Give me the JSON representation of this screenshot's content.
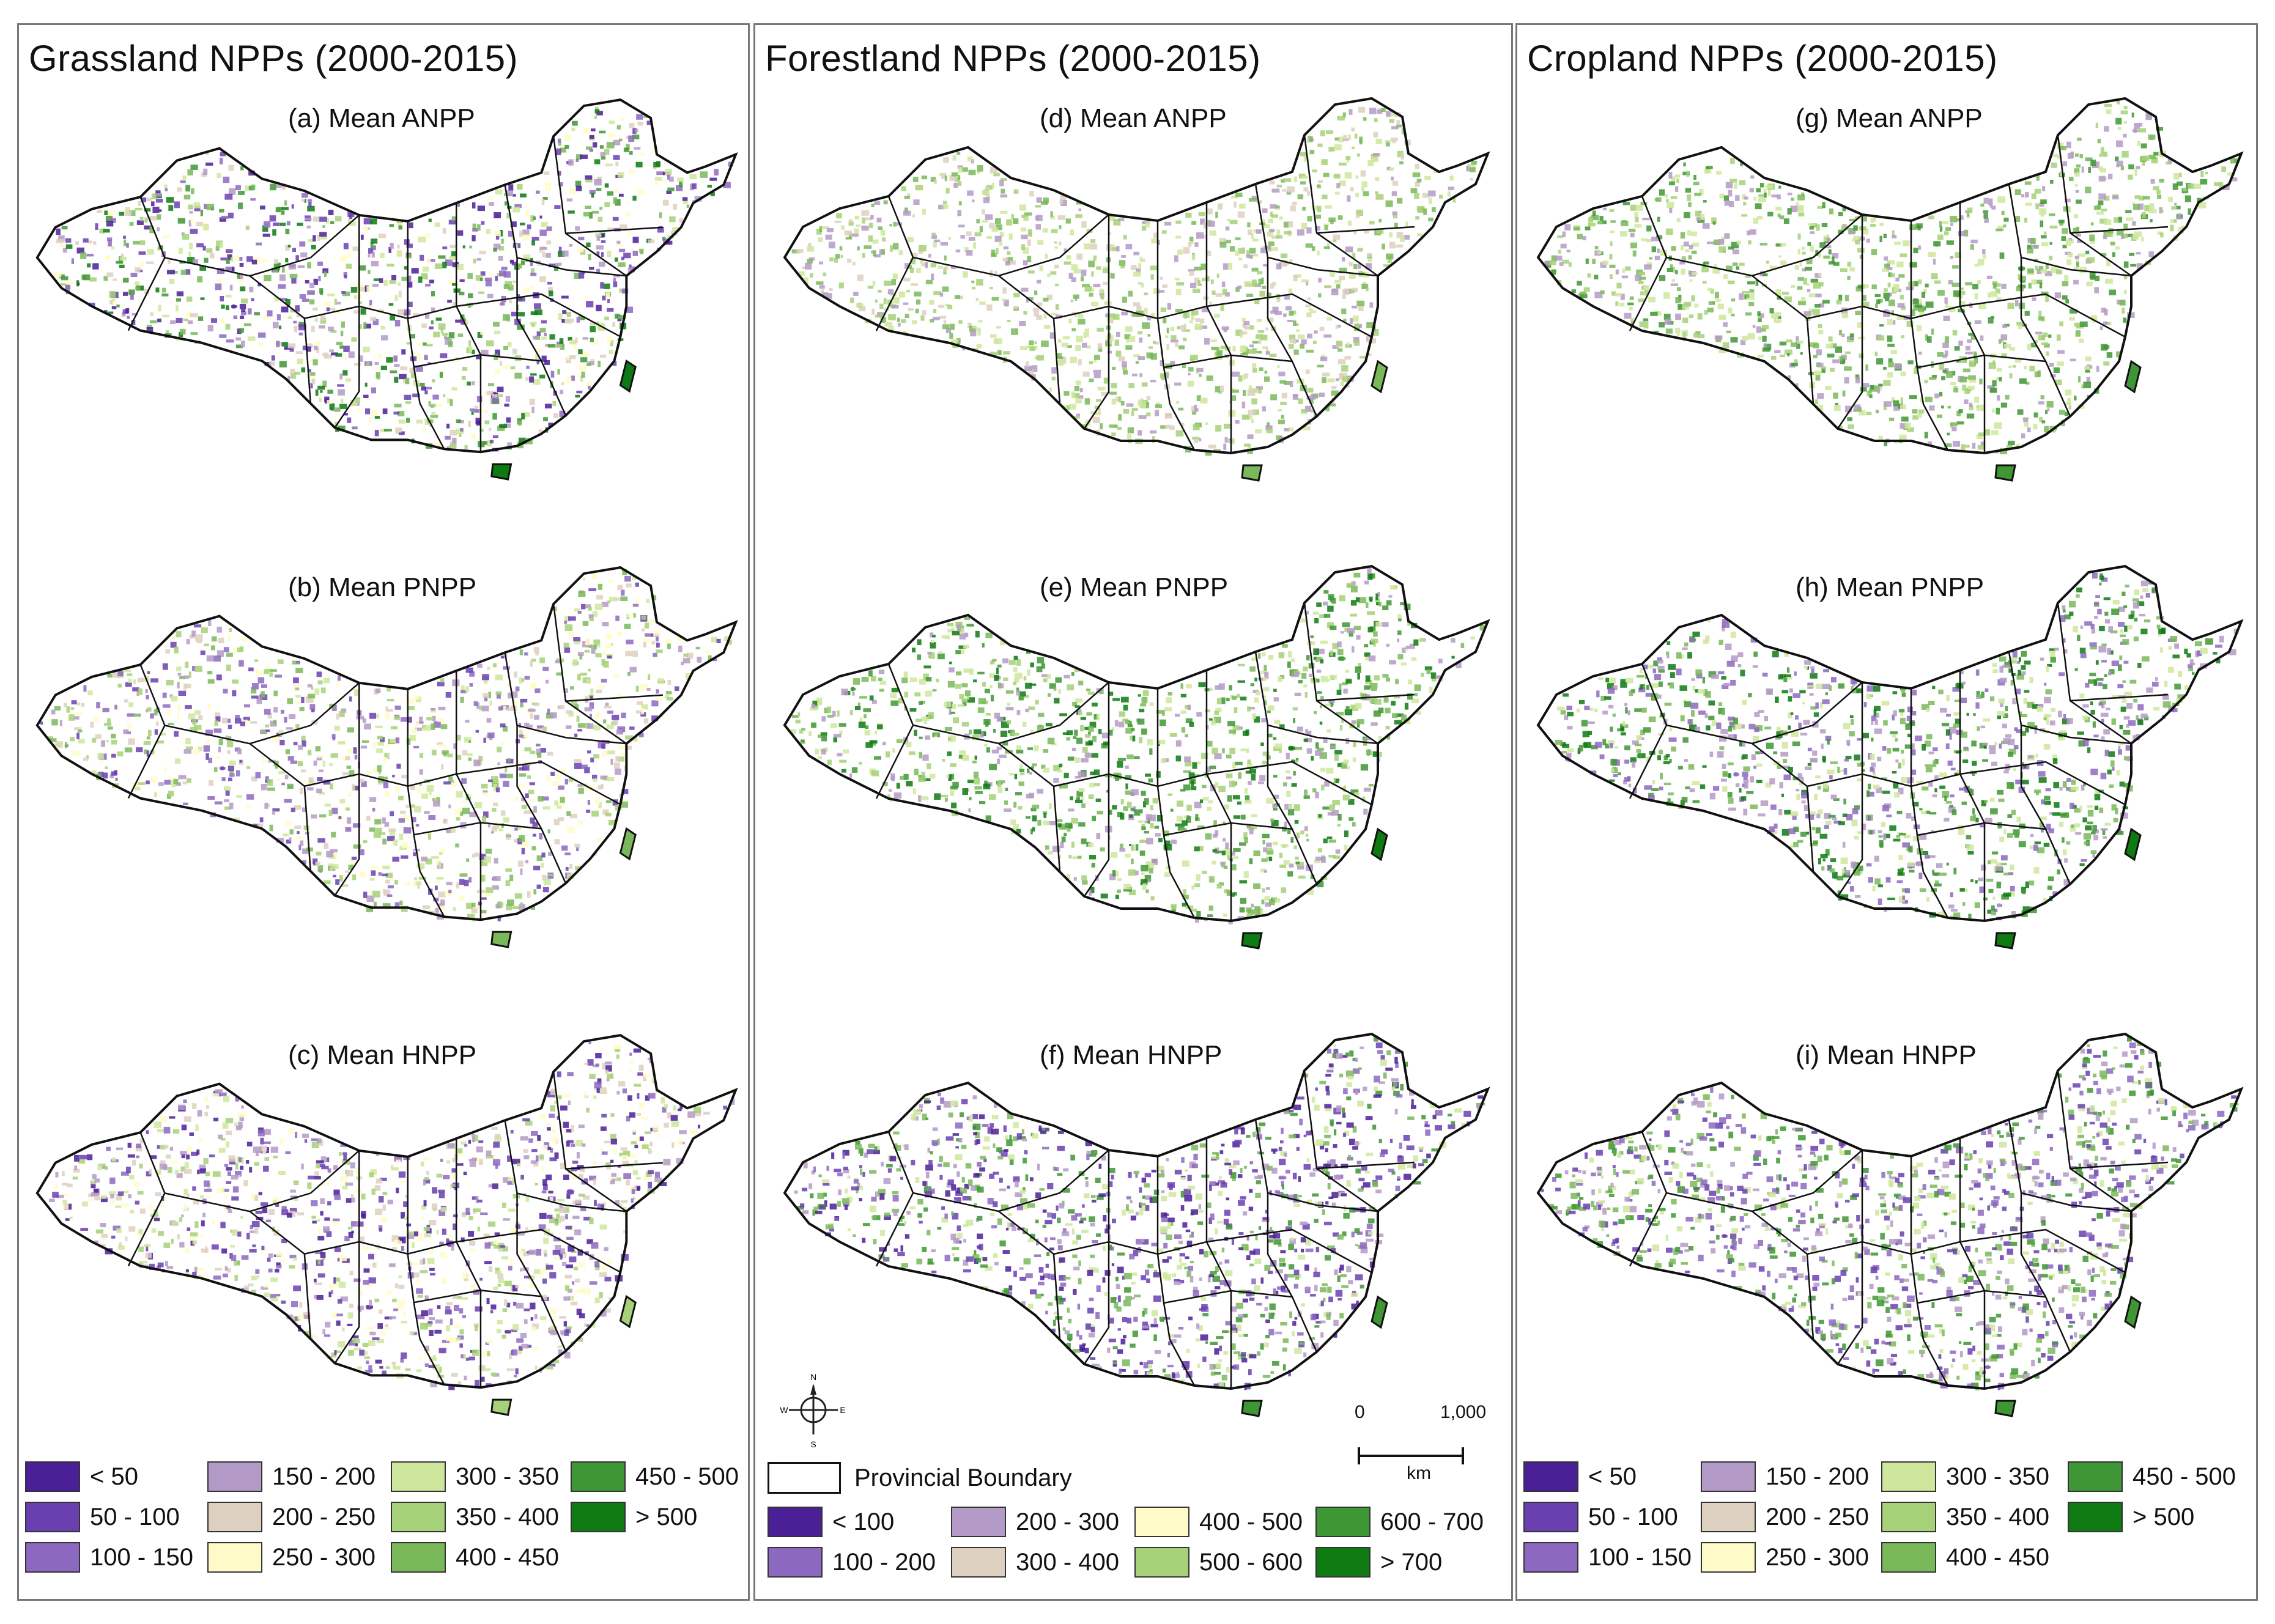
{
  "columns": [
    {
      "title": "Grassland NPPs (2000-2015)",
      "maps": [
        {
          "label": "(a) Mean ANPP",
          "palette": [
            "#4b1f96",
            "#6a3fb0",
            "#8d68c0",
            "#b49ac6",
            "#ddd0c0",
            "#fffbc8",
            "#cfe79c",
            "#a6d178",
            "#79b95a",
            "#3f9634",
            "#0e7a12"
          ]
        },
        {
          "label": "(b) Mean PNPP",
          "palette": [
            "#6a3fb0",
            "#8d68c0",
            "#b49ac6",
            "#ddd0c0",
            "#fffbc8",
            "#cfe79c",
            "#a6d178",
            "#79b95a"
          ]
        },
        {
          "label": "(c) Mean HNPP",
          "palette": [
            "#4b1f96",
            "#6a3fb0",
            "#8d68c0",
            "#b49ac6",
            "#ddd0c0",
            "#fffbc8",
            "#cfe79c",
            "#a6d178"
          ]
        }
      ],
      "legend": [
        {
          "label": "< 50",
          "color": "#4b1f96"
        },
        {
          "label": "50 - 100",
          "color": "#6a3fb0"
        },
        {
          "label": "100 - 150",
          "color": "#8d68c0"
        },
        {
          "label": "150 - 200",
          "color": "#b49ac6"
        },
        {
          "label": "200 - 250",
          "color": "#ddd0c0"
        },
        {
          "label": "250 - 300",
          "color": "#fffbc8"
        },
        {
          "label": "300 - 350",
          "color": "#cfe79c"
        },
        {
          "label": "350 - 400",
          "color": "#a6d178"
        },
        {
          "label": "400 - 450",
          "color": "#79b95a"
        },
        {
          "label": "450 - 500",
          "color": "#3f9634"
        },
        {
          "label": "> 500",
          "color": "#0e7a12"
        }
      ]
    },
    {
      "title": "Forestland NPPs (2000-2015)",
      "maps": [
        {
          "label": "(d) Mean ANPP",
          "palette": [
            "#b49ac6",
            "#ddd0c0",
            "#cfe79c",
            "#a6d178",
            "#79b95a"
          ]
        },
        {
          "label": "(e) Mean PNPP",
          "palette": [
            "#b49ac6",
            "#cfe79c",
            "#a6d178",
            "#79b95a",
            "#3f9634",
            "#0e7a12"
          ]
        },
        {
          "label": "(f) Mean HNPP",
          "palette": [
            "#4b1f96",
            "#6a3fb0",
            "#8d68c0",
            "#b49ac6",
            "#cfe79c",
            "#79b95a",
            "#3f9634"
          ]
        }
      ],
      "legend": [
        {
          "label": "< 100",
          "color": "#4b1f96"
        },
        {
          "label": "100 - 200",
          "color": "#8d68c0"
        },
        {
          "label": "200 - 300",
          "color": "#b49ac6"
        },
        {
          "label": "300 - 400",
          "color": "#ddd0c0"
        },
        {
          "label": "400 - 500",
          "color": "#fffbc8"
        },
        {
          "label": "500 - 600",
          "color": "#a6d178"
        },
        {
          "label": "600 - 700",
          "color": "#3f9634"
        },
        {
          "label": "> 700",
          "color": "#0e7a12"
        }
      ],
      "boundary_label": "Provincial Boundary",
      "north": {
        "n": "N",
        "s": "S",
        "e": "E",
        "w": "W"
      },
      "scale": {
        "start": "0",
        "end": "1,000",
        "unit": "km"
      }
    },
    {
      "title": "Cropland NPPs (2000-2015)",
      "maps": [
        {
          "label": "(g) Mean ANPP",
          "palette": [
            "#b49ac6",
            "#cfe79c",
            "#a6d178",
            "#79b95a",
            "#3f9634"
          ]
        },
        {
          "label": "(h) Mean PNPP",
          "palette": [
            "#8d68c0",
            "#b49ac6",
            "#cfe79c",
            "#79b95a",
            "#3f9634",
            "#0e7a12"
          ]
        },
        {
          "label": "(i) Mean HNPP",
          "palette": [
            "#6a3fb0",
            "#8d68c0",
            "#b49ac6",
            "#cfe79c",
            "#79b95a",
            "#3f9634"
          ]
        }
      ],
      "legend": [
        {
          "label": "< 50",
          "color": "#4b1f96"
        },
        {
          "label": "50 - 100",
          "color": "#6a3fb0"
        },
        {
          "label": "100 - 150",
          "color": "#8d68c0"
        },
        {
          "label": "150 - 200",
          "color": "#b49ac6"
        },
        {
          "label": "200 - 250",
          "color": "#ddd0c0"
        },
        {
          "label": "250 - 300",
          "color": "#fffbc8"
        },
        {
          "label": "300 - 350",
          "color": "#cfe79c"
        },
        {
          "label": "350 - 400",
          "color": "#a6d178"
        },
        {
          "label": "400 - 450",
          "color": "#79b95a"
        },
        {
          "label": "450 - 500",
          "color": "#3f9634"
        },
        {
          "label": "> 500",
          "color": "#0e7a12"
        }
      ]
    }
  ]
}
